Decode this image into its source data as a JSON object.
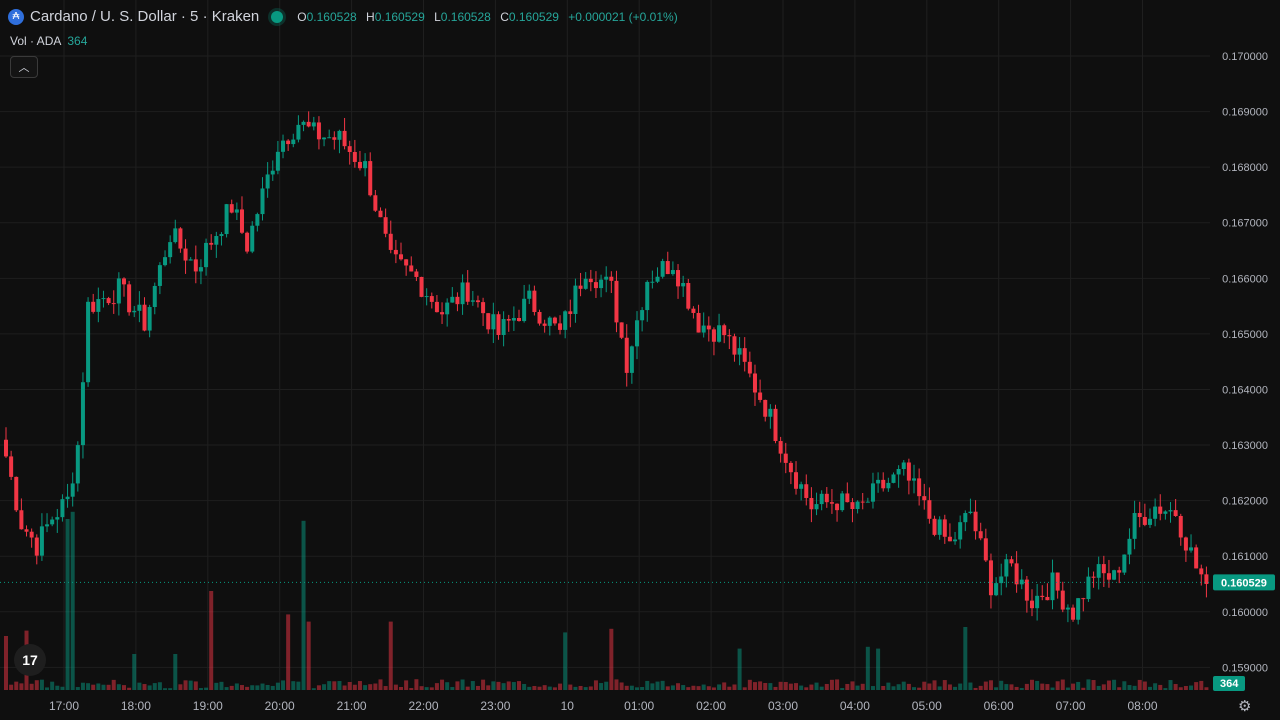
{
  "header": {
    "symbol": "Cardano / U. S. Dollar · 5 · Kraken",
    "ohlc": {
      "o_label": "O",
      "o": "0.160528",
      "h_label": "H",
      "h": "0.160529",
      "l_label": "L",
      "l": "0.160528",
      "c_label": "C",
      "c": "0.160529",
      "change": "+0.000021 (+0.01%)"
    },
    "volume_label": "Vol · ADA",
    "volume_value": "364"
  },
  "colors": {
    "up": "#089981",
    "down": "#f23645",
    "bg": "#0f0f0f",
    "grid": "#1f1f1f",
    "text": "#b2b5be"
  },
  "icons": {
    "logo": "cardano-logo-icon",
    "collapse": "chevron-up-icon",
    "brand": "tradingview-logo-icon",
    "settings": "gear-icon"
  },
  "chart_data": {
    "type": "candlestick",
    "interval": "5",
    "y_ticks": [
      "0.170000",
      "0.169000",
      "0.168000",
      "0.167000",
      "0.166000",
      "0.165000",
      "0.164000",
      "0.163000",
      "0.162000",
      "0.161000",
      "0.160000",
      "0.159000"
    ],
    "ylim": [
      0.1587,
      0.1705
    ],
    "x_ticks": [
      "17:00",
      "18:00",
      "19:00",
      "20:00",
      "21:00",
      "22:00",
      "23:00",
      "10",
      "01:00",
      "02:00",
      "03:00",
      "04:00",
      "05:00",
      "06:00",
      "07:00",
      "08:00"
    ],
    "last_price": "0.160529",
    "last_volume": "364",
    "anchors": [
      {
        "i": 0,
        "p": 0.1628
      },
      {
        "i": 3,
        "p": 0.1616
      },
      {
        "i": 6,
        "p": 0.1612
      },
      {
        "i": 9,
        "p": 0.1617
      },
      {
        "i": 12,
        "p": 0.162
      },
      {
        "i": 14,
        "p": 0.163
      },
      {
        "i": 16,
        "p": 0.1655
      },
      {
        "i": 22,
        "p": 0.1658
      },
      {
        "i": 27,
        "p": 0.1652
      },
      {
        "i": 32,
        "p": 0.1668
      },
      {
        "i": 37,
        "p": 0.1662
      },
      {
        "i": 44,
        "p": 0.1673
      },
      {
        "i": 47,
        "p": 0.1666
      },
      {
        "i": 53,
        "p": 0.1684
      },
      {
        "i": 57,
        "p": 0.1688
      },
      {
        "i": 60,
        "p": 0.1686
      },
      {
        "i": 65,
        "p": 0.1685
      },
      {
        "i": 70,
        "p": 0.168
      },
      {
        "i": 75,
        "p": 0.1663
      },
      {
        "i": 80,
        "p": 0.166
      },
      {
        "i": 85,
        "p": 0.1654
      },
      {
        "i": 90,
        "p": 0.1658
      },
      {
        "i": 96,
        "p": 0.165
      },
      {
        "i": 102,
        "p": 0.1656
      },
      {
        "i": 108,
        "p": 0.165
      },
      {
        "i": 113,
        "p": 0.1662
      },
      {
        "i": 118,
        "p": 0.1658
      },
      {
        "i": 121,
        "p": 0.1645
      },
      {
        "i": 125,
        "p": 0.166
      },
      {
        "i": 130,
        "p": 0.1663
      },
      {
        "i": 135,
        "p": 0.1652
      },
      {
        "i": 140,
        "p": 0.165
      },
      {
        "i": 144,
        "p": 0.1644
      },
      {
        "i": 148,
        "p": 0.1637
      },
      {
        "i": 153,
        "p": 0.1626
      },
      {
        "i": 157,
        "p": 0.1619
      },
      {
        "i": 162,
        "p": 0.162
      },
      {
        "i": 166,
        "p": 0.1618
      },
      {
        "i": 170,
        "p": 0.1622
      },
      {
        "i": 175,
        "p": 0.1625
      },
      {
        "i": 180,
        "p": 0.1617
      },
      {
        "i": 184,
        "p": 0.1612
      },
      {
        "i": 188,
        "p": 0.1618
      },
      {
        "i": 192,
        "p": 0.1605
      },
      {
        "i": 196,
        "p": 0.1608
      },
      {
        "i": 200,
        "p": 0.1602
      },
      {
        "i": 204,
        "p": 0.1605
      },
      {
        "i": 208,
        "p": 0.16
      },
      {
        "i": 212,
        "p": 0.1607
      },
      {
        "i": 216,
        "p": 0.1606
      },
      {
        "i": 220,
        "p": 0.1616
      },
      {
        "i": 224,
        "p": 0.1619
      },
      {
        "i": 228,
        "p": 0.1618
      },
      {
        "i": 232,
        "p": 0.1608
      },
      {
        "i": 234,
        "p": 0.1605
      }
    ],
    "volume_spikes": {
      "12": 0.95,
      "13": 0.99,
      "40": 0.55,
      "55": 0.42,
      "58": 0.94,
      "59": 0.38,
      "75": 0.38,
      "109": 0.32,
      "118": 0.34,
      "143": 0.23,
      "168": 0.24,
      "170": 0.23,
      "187": 0.35,
      "0": 0.3,
      "4": 0.33,
      "25": 0.2,
      "33": 0.2
    }
  }
}
